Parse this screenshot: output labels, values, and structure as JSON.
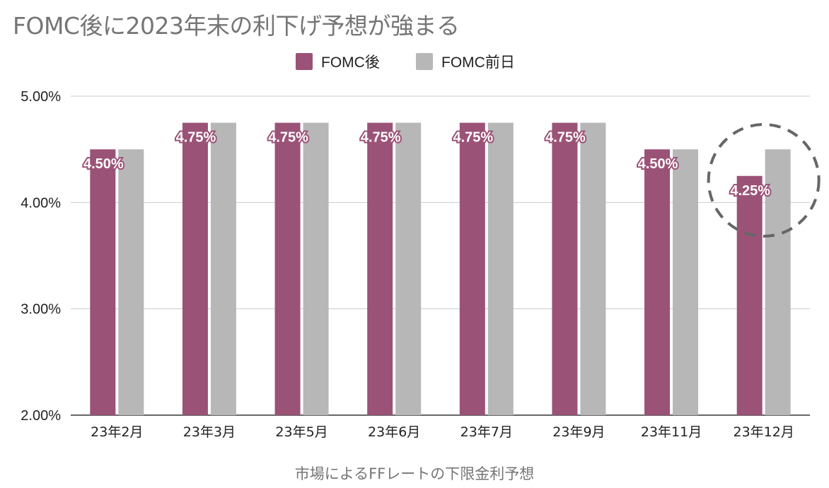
{
  "chart_data": {
    "type": "bar",
    "title": "FOMC後に2023年末の利下げ予想が強まる",
    "xlabel": "市場によるFFレートの下限金利予想",
    "ylabel": "",
    "ylim": [
      2.0,
      5.0
    ],
    "yticks": [
      "2.00%",
      "3.00%",
      "4.00%",
      "5.00%"
    ],
    "ytick_values": [
      2.0,
      3.0,
      4.0,
      5.0
    ],
    "categories": [
      "23年2月",
      "23年3月",
      "23年5月",
      "23年6月",
      "23年7月",
      "23年9月",
      "23年11月",
      "23年12月"
    ],
    "series": [
      {
        "name": "FOMC後",
        "color": "#9b5277",
        "values": [
          4.5,
          4.75,
          4.75,
          4.75,
          4.75,
          4.75,
          4.5,
          4.25
        ]
      },
      {
        "name": "FOMC前日",
        "color": "#b7b7b7",
        "values": [
          4.5,
          4.75,
          4.75,
          4.75,
          4.75,
          4.75,
          4.5,
          4.5
        ]
      }
    ],
    "data_labels": [
      "4.50%",
      "4.75%",
      "4.75%",
      "4.75%",
      "4.75%",
      "4.75%",
      "4.50%",
      "4.25%"
    ],
    "grid": true,
    "legend_placement": "top-center",
    "highlight": {
      "category": "23年12月",
      "style": "dashed-ellipse",
      "color": "#666666"
    }
  }
}
